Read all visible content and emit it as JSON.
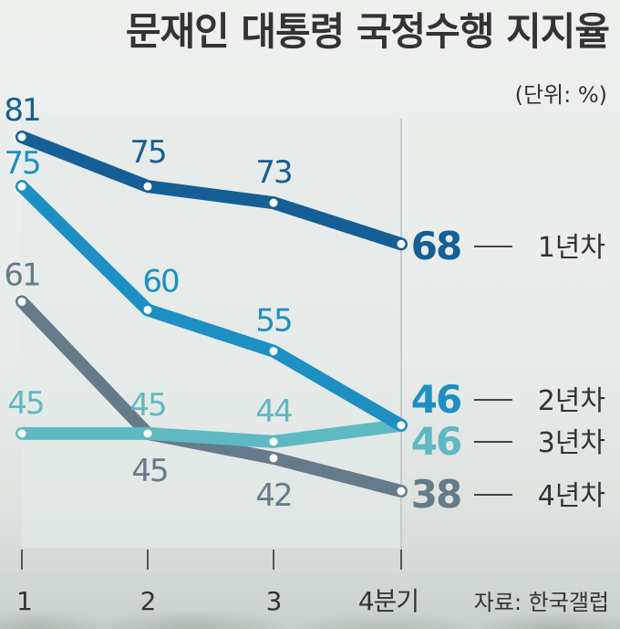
{
  "title": "문재인 대통령 국정수행 지지율",
  "unit_label": "(단위: %)",
  "source_label": "자료: 한국갤럽",
  "chart_data": {
    "type": "line",
    "title": "문재인 대통령 국정수행 지지율",
    "xlabel": "",
    "ylabel": "",
    "categories": [
      "1",
      "2",
      "3",
      "4분기"
    ],
    "ylim": [
      38,
      81
    ],
    "grid": false,
    "legend": "right, at line ends",
    "series": [
      {
        "name": "1년차",
        "values": [
          81,
          75,
          73,
          68
        ],
        "color": "#155f96"
      },
      {
        "name": "2년차",
        "values": [
          75,
          60,
          55,
          46
        ],
        "color": "#1d8fc3"
      },
      {
        "name": "3년차",
        "values": [
          45,
          45,
          44,
          46
        ],
        "color": "#5fb9c2"
      },
      {
        "name": "4년차",
        "values": [
          61,
          45,
          42,
          38
        ],
        "color": "#667b8a"
      }
    ]
  }
}
